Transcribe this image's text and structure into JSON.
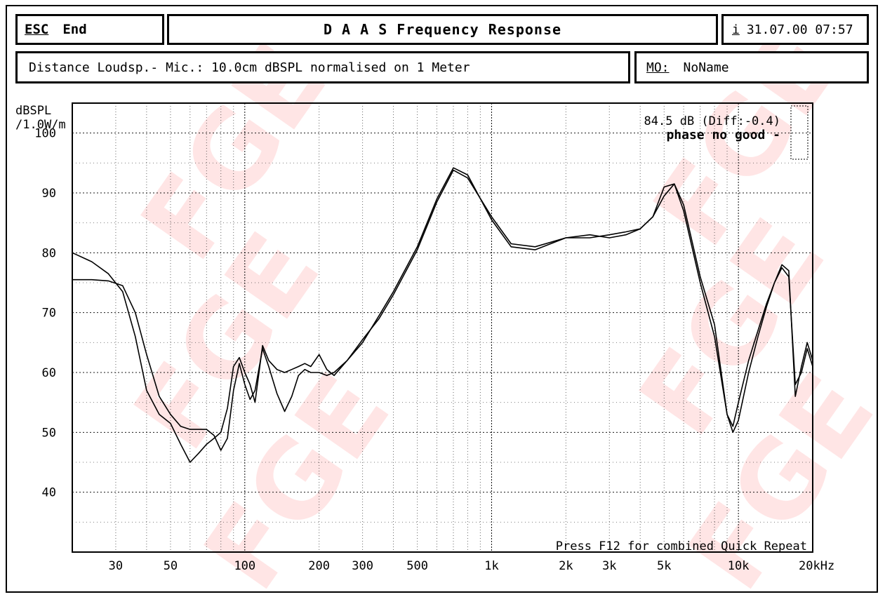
{
  "header": {
    "esc_label": "ESC",
    "end_label": "End",
    "title": "D A A S  Frequency Response",
    "date_marker": "i",
    "datetime": "31.07.00 07:57"
  },
  "info": {
    "measurement_text": "Distance Loudsp.- Mic.: 10.0cm dBSPL normalised on 1 Meter",
    "mo_label": "MO:",
    "mo_value": "NoName"
  },
  "annotations": {
    "level_text": "84.5 dB (Diff:-0.4)",
    "phase_text": "phase no good -",
    "footer_text": "Press F12 for combined Quick Repeat"
  },
  "watermark": {
    "text": "FGE®",
    "color": "#ff0000"
  },
  "chart_data": {
    "type": "line",
    "title": "Frequency Response",
    "ylabel": "dBSPL /1.0W/m",
    "xlabel": "",
    "x_scale": "log",
    "xlim": [
      20,
      20000
    ],
    "ylim": [
      30,
      105
    ],
    "grid": true,
    "yticks": [
      40,
      50,
      60,
      70,
      80,
      90,
      100
    ],
    "xticks": [
      {
        "value": 30,
        "label": "30"
      },
      {
        "value": 50,
        "label": "50"
      },
      {
        "value": 100,
        "label": "100"
      },
      {
        "value": 200,
        "label": "200"
      },
      {
        "value": 300,
        "label": "300"
      },
      {
        "value": 500,
        "label": "500"
      },
      {
        "value": 1000,
        "label": "1k"
      },
      {
        "value": 2000,
        "label": "2k"
      },
      {
        "value": 3000,
        "label": "3k"
      },
      {
        "value": 5000,
        "label": "5k"
      },
      {
        "value": 10000,
        "label": "10k"
      },
      {
        "value": 20000,
        "label": "20kHz"
      }
    ],
    "series": [
      {
        "x": [
          20,
          24,
          28,
          32,
          36,
          40,
          45,
          50,
          55,
          60,
          65,
          70,
          75,
          80,
          85,
          90,
          95,
          100,
          105,
          110,
          118,
          125,
          135,
          145,
          155,
          165,
          175,
          185,
          200,
          215,
          230,
          260,
          300,
          350,
          400,
          500,
          600,
          700,
          800,
          1000,
          1200,
          1500,
          2000,
          2500,
          3000,
          3500,
          4000,
          4500,
          5000,
          5500,
          6000,
          7000,
          8000,
          9000,
          9500,
          10000,
          11000,
          12000,
          13000,
          14000,
          15000,
          16000,
          17000,
          18000,
          19000,
          20000
        ],
        "y": [
          75.5,
          75.5,
          75.3,
          74.5,
          70,
          63,
          56,
          53,
          51,
          50.5,
          50.5,
          50.5,
          49.5,
          47,
          49,
          57,
          61.5,
          58,
          55.5,
          57,
          64,
          61,
          56.5,
          53.5,
          56,
          59.5,
          60.5,
          60,
          60,
          59.5,
          60,
          62,
          65,
          69.5,
          73.5,
          81,
          89,
          94.2,
          93,
          85.5,
          81,
          80.5,
          82.5,
          82.5,
          83,
          83.5,
          84,
          86,
          91,
          91.5,
          87,
          75,
          66,
          53,
          50,
          52,
          60,
          66,
          71,
          75,
          77.5,
          76,
          58,
          60,
          64,
          61
        ]
      },
      {
        "x": [
          20,
          24,
          28,
          32,
          36,
          40,
          45,
          50,
          55,
          60,
          65,
          70,
          75,
          80,
          85,
          90,
          95,
          100,
          105,
          110,
          118,
          125,
          135,
          145,
          155,
          165,
          175,
          185,
          200,
          215,
          230,
          260,
          300,
          350,
          400,
          500,
          600,
          700,
          800,
          1000,
          1200,
          1500,
          2000,
          2500,
          3000,
          3500,
          4000,
          4500,
          5000,
          5500,
          6000,
          7000,
          8000,
          9000,
          9500,
          10000,
          11000,
          12000,
          13000,
          14000,
          15000,
          16000,
          17000,
          18000,
          19000,
          20000
        ],
        "y": [
          80,
          78.5,
          76.5,
          73.5,
          66,
          57,
          53,
          51.5,
          48,
          45,
          46.5,
          48,
          49,
          50,
          54,
          61,
          62.5,
          60,
          58,
          55,
          64.5,
          62,
          60.5,
          60,
          60.5,
          61,
          61.5,
          61,
          63,
          60.5,
          59.5,
          62,
          65.5,
          69,
          73,
          80.5,
          88.5,
          93.8,
          92.5,
          86,
          81.5,
          81,
          82.5,
          83,
          82.5,
          83,
          84,
          86,
          89.5,
          91.5,
          88,
          76,
          68,
          53,
          51,
          55,
          62,
          67,
          71.5,
          75,
          78,
          77,
          56,
          61,
          65,
          62
        ]
      }
    ]
  }
}
